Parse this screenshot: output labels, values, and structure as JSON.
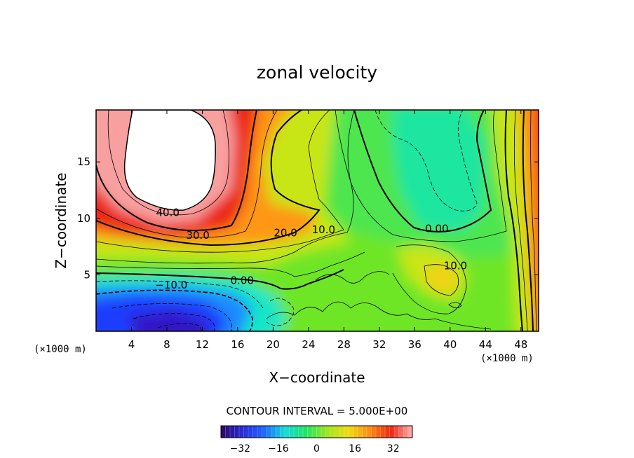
{
  "chart_data": {
    "type": "contour",
    "title": "zonal velocity",
    "xlabel": "X−coordinate",
    "ylabel": "Z−coordinate",
    "x_unit_left": "(×1000 m)",
    "x_unit_right": "(×1000 m)",
    "xlim": [
      0,
      50
    ],
    "ylim": [
      0,
      19.6
    ],
    "x_ticks": [
      4,
      8,
      12,
      16,
      20,
      24,
      28,
      32,
      36,
      40,
      44,
      48
    ],
    "y_ticks": [
      5,
      10,
      15
    ],
    "contour_interval_text": "CONTOUR INTERVAL = 5.000E+00",
    "contour_interval": 5,
    "contour_labels": [
      {
        "text": "40.0",
        "x": 8.1,
        "y": 10.5
      },
      {
        "text": "30.0",
        "x": 11.5,
        "y": 8.5
      },
      {
        "text": "20.0",
        "x": 21.4,
        "y": 8.7
      },
      {
        "text": "10.0",
        "x": 25.7,
        "y": 9.0
      },
      {
        "text": "0.00",
        "x": 38.5,
        "y": 9.1
      },
      {
        "text": "10.0",
        "x": 40.6,
        "y": 5.8
      },
      {
        "text": "0.00",
        "x": 16.5,
        "y": 4.5
      },
      {
        "text": "−10.0",
        "x": 8.5,
        "y": 4.1
      }
    ],
    "features": [
      {
        "name": "jet core (above 45)",
        "x": [
          2,
          14
        ],
        "y": [
          11,
          19.6
        ],
        "value_max": 45
      },
      {
        "name": "negative region (low level)",
        "x": [
          0,
          22
        ],
        "y": [
          0,
          6
        ],
        "value_min": -35
      },
      {
        "name": "local maximum",
        "x": 39,
        "y": 4.5,
        "value": 15
      },
      {
        "name": "local minimum",
        "x": 39,
        "y": 14,
        "value": -5
      }
    ],
    "colorbar": {
      "min": -40,
      "max": 40,
      "tick_values": [
        -32,
        -16,
        0,
        16,
        32
      ],
      "tick_labels": [
        "−32",
        "−16",
        "0",
        "16",
        "32"
      ],
      "colormap": [
        "#2a0a60",
        "#2a2ad8",
        "#1e64ff",
        "#14dcdc",
        "#1ee664",
        "#9ee61e",
        "#f0dc14",
        "#ff8c14",
        "#f02814",
        "#ffb4b4"
      ]
    }
  }
}
